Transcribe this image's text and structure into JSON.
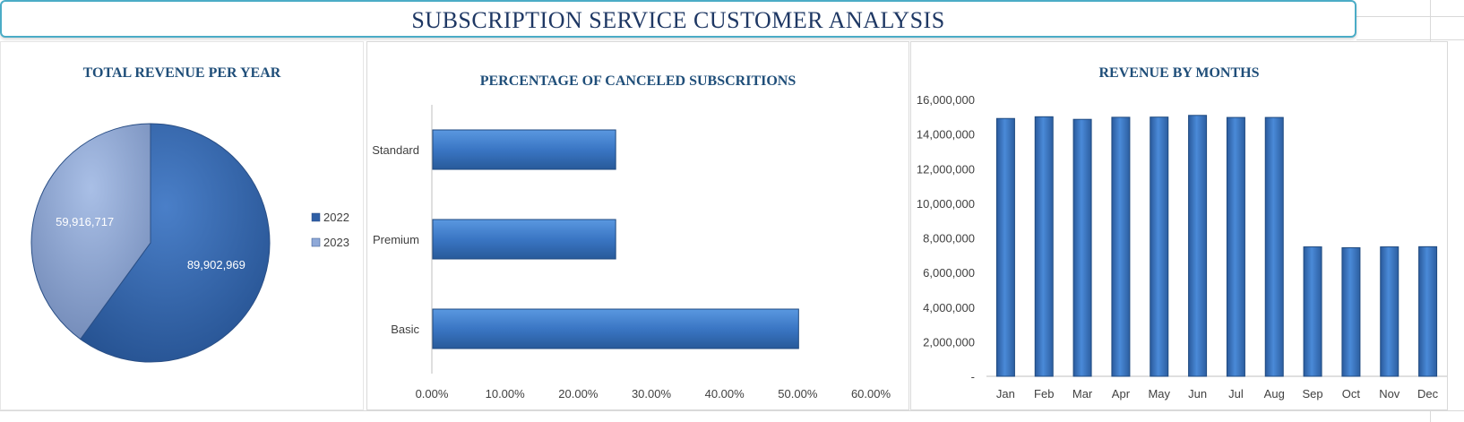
{
  "page_title": "SUBSCRIPTION SERVICE CUSTOMER ANALYSIS",
  "chart_data": [
    {
      "type": "pie",
      "title": "TOTAL REVENUE PER YEAR",
      "categories": [
        "2022",
        "2023"
      ],
      "values": [
        89902969,
        59916717
      ],
      "data_labels": [
        "89,902,969",
        "59,916,717"
      ],
      "colors": [
        "#2f5fa5",
        "#8fa9d8"
      ],
      "legend_position": "right"
    },
    {
      "type": "bar",
      "orientation": "horizontal",
      "title": "PERCENTAGE OF CANCELED SUBSCRITIONS",
      "categories": [
        "Standard",
        "Premium",
        "Basic"
      ],
      "values": [
        0.25,
        0.25,
        0.5
      ],
      "xlim": [
        0,
        0.6
      ],
      "x_ticks": [
        "0.00%",
        "10.00%",
        "20.00%",
        "30.00%",
        "40.00%",
        "50.00%",
        "60.00%"
      ],
      "color": "#3a76c4",
      "grid": false
    },
    {
      "type": "bar",
      "title": "REVENUE BY MONTHS",
      "categories": [
        "Jan",
        "Feb",
        "Mar",
        "Apr",
        "May",
        "Jun",
        "Jul",
        "Aug",
        "Sep",
        "Oct",
        "Nov",
        "Dec"
      ],
      "values": [
        14900000,
        15000000,
        14850000,
        14970000,
        14980000,
        15080000,
        14960000,
        14960000,
        7480000,
        7430000,
        7480000,
        7490000
      ],
      "ylim": [
        0,
        16000000
      ],
      "y_ticks": [
        "-",
        "2,000,000",
        "4,000,000",
        "6,000,000",
        "8,000,000",
        "10,000,000",
        "12,000,000",
        "14,000,000",
        "16,000,000"
      ],
      "color": "#3a76c4",
      "grid": false
    }
  ]
}
